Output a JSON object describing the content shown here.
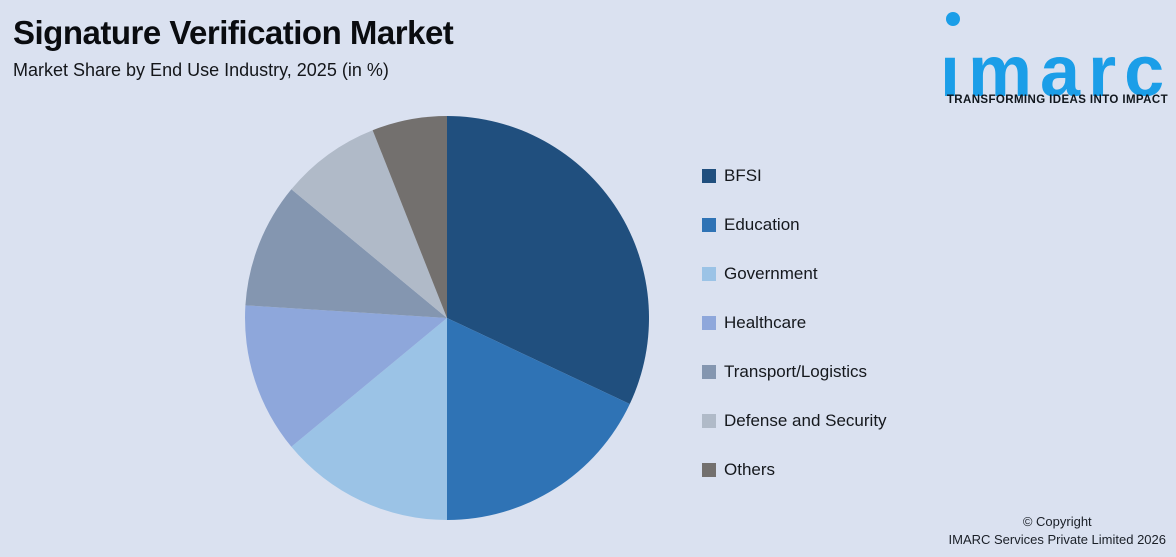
{
  "header": {
    "title": "Signature Verification Market",
    "subtitle": "Market Share by End Use Industry, 2025 (in %)"
  },
  "logo": {
    "brand": "imarc",
    "tagline": "TRANSFORMING IDEAS INTO IMPACT",
    "brand_color": "#1B9EE8"
  },
  "footer": {
    "line1": "© Copyright",
    "line2": "IMARC Services Private Limited 2026"
  },
  "colors": {
    "background": "#DAE1F0"
  },
  "chart_data": {
    "type": "pie",
    "title": "Signature Verification Market",
    "subtitle": "Market Share by End Use Industry, 2025 (in %)",
    "unit": "%",
    "start_angle_deg": 0,
    "direction": "clockwise",
    "legend_position": "right",
    "categories": [
      "BFSI",
      "Education",
      "Government",
      "Healthcare",
      "Transport/Logistics",
      "Defense and Security",
      "Others"
    ],
    "series": [
      {
        "label": "BFSI",
        "value": 32,
        "color": "#204F7E"
      },
      {
        "label": "Education",
        "value": 18,
        "color": "#2F73B5"
      },
      {
        "label": "Government",
        "value": 14,
        "color": "#9BC3E6"
      },
      {
        "label": "Healthcare",
        "value": 12,
        "color": "#8EA7DB"
      },
      {
        "label": "Transport/Logistics",
        "value": 10,
        "color": "#8496B0"
      },
      {
        "label": "Defense and Security",
        "value": 8,
        "color": "#B0BAC8"
      },
      {
        "label": "Others",
        "value": 6,
        "color": "#73706E"
      }
    ]
  }
}
